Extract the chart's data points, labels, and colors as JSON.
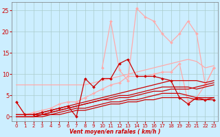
{
  "background_color": "#cceeff",
  "grid_color": "#aacccc",
  "xlabel": "Vent moyen/en rafales ( km/h )",
  "tick_color": "#cc0000",
  "yticks": [
    0,
    5,
    10,
    15,
    20,
    25
  ],
  "xticks": [
    0,
    1,
    2,
    3,
    4,
    5,
    6,
    7,
    8,
    9,
    10,
    11,
    12,
    13,
    14,
    15,
    16,
    17,
    18,
    19,
    20,
    21,
    22,
    23
  ],
  "xlim": [
    -0.5,
    23.5
  ],
  "ylim": [
    -1,
    27
  ],
  "series": [
    {
      "x": [
        0,
        1,
        2,
        3,
        4,
        5,
        6,
        7,
        8,
        9,
        10,
        11,
        12,
        13,
        14,
        15,
        16,
        17,
        18,
        19,
        20,
        21,
        22,
        23
      ],
      "y": [
        7.5,
        7.5,
        7.5,
        7.5,
        7.5,
        7.5,
        7.5,
        7.5,
        7.5,
        8.0,
        8.5,
        9.0,
        9.5,
        10.0,
        10.5,
        11.0,
        11.5,
        12.0,
        12.5,
        13.0,
        13.5,
        13.0,
        11.5,
        12.0
      ],
      "color": "#ffaaaa",
      "linewidth": 0.9,
      "marker": null,
      "markersize": 0
    },
    {
      "x": [
        10,
        11,
        12,
        13,
        14,
        15,
        16,
        17,
        18,
        19,
        20,
        21,
        22,
        23
      ],
      "y": [
        11.5,
        22.5,
        11.0,
        8.5,
        25.5,
        23.5,
        22.5,
        19.5,
        17.5,
        19.5,
        22.5,
        19.5,
        7.5,
        11.5
      ],
      "color": "#ffaaaa",
      "linewidth": 0.9,
      "marker": "D",
      "markersize": 2
    },
    {
      "x": [
        0,
        1,
        2,
        3,
        4,
        5,
        6,
        7,
        8,
        9,
        10,
        11,
        12,
        13,
        14,
        15,
        16,
        17,
        18,
        19,
        20,
        21,
        22,
        23
      ],
      "y": [
        3.5,
        0.5,
        1.0,
        1.5,
        2.0,
        3.0,
        3.5,
        3.5,
        4.5,
        5.5,
        6.5,
        7.5,
        8.0,
        9.5,
        9.5,
        9.5,
        10.0,
        10.5,
        10.5,
        12.5,
        3.5,
        4.5,
        7.5,
        11.5
      ],
      "color": "#ffaaaa",
      "linewidth": 0.9,
      "marker": "D",
      "markersize": 2
    },
    {
      "x": [
        0,
        1,
        2,
        3,
        4,
        5,
        6,
        7,
        8,
        9,
        10,
        11,
        12,
        13,
        14,
        15,
        16,
        17,
        18,
        19,
        20,
        21,
        22,
        23
      ],
      "y": [
        3.5,
        0.5,
        0.5,
        1.0,
        1.5,
        2.0,
        2.5,
        0.0,
        9.0,
        7.0,
        9.0,
        9.0,
        12.5,
        13.5,
        9.5,
        9.5,
        9.5,
        9.0,
        8.5,
        4.5,
        3.0,
        4.5,
        4.0,
        4.0
      ],
      "color": "#cc0000",
      "linewidth": 0.9,
      "marker": "D",
      "markersize": 2
    },
    {
      "x": [
        0,
        1,
        2,
        3,
        4,
        5,
        6,
        7,
        8,
        9,
        10,
        11,
        12,
        13,
        14,
        15,
        16,
        17,
        18,
        19,
        20,
        21,
        22,
        23
      ],
      "y": [
        0.5,
        0.5,
        0.5,
        1.0,
        1.5,
        2.0,
        2.5,
        3.0,
        3.5,
        4.0,
        4.5,
        5.0,
        5.5,
        6.0,
        6.5,
        7.0,
        7.5,
        8.0,
        8.5,
        8.5,
        8.5,
        8.5,
        8.0,
        8.5
      ],
      "color": "#cc0000",
      "linewidth": 0.9,
      "marker": null,
      "markersize": 0
    },
    {
      "x": [
        0,
        1,
        2,
        3,
        4,
        5,
        6,
        7,
        8,
        9,
        10,
        11,
        12,
        13,
        14,
        15,
        16,
        17,
        18,
        19,
        20,
        21,
        22,
        23
      ],
      "y": [
        0.5,
        0.5,
        0.5,
        0.5,
        1.0,
        1.5,
        2.0,
        2.5,
        3.0,
        3.5,
        4.0,
        4.5,
        5.0,
        5.0,
        5.5,
        6.0,
        6.5,
        7.0,
        7.0,
        7.0,
        7.0,
        6.5,
        7.0,
        7.5
      ],
      "color": "#cc0000",
      "linewidth": 0.9,
      "marker": null,
      "markersize": 0
    },
    {
      "x": [
        0,
        1,
        2,
        3,
        4,
        5,
        6,
        7,
        8,
        9,
        10,
        11,
        12,
        13,
        14,
        15,
        16,
        17,
        18,
        19,
        20,
        21,
        22,
        23
      ],
      "y": [
        0.0,
        0.0,
        0.0,
        0.5,
        0.5,
        1.0,
        1.5,
        2.0,
        2.0,
        2.5,
        3.0,
        3.5,
        3.5,
        4.0,
        4.0,
        4.5,
        5.0,
        5.5,
        5.5,
        5.5,
        5.0,
        4.5,
        4.5,
        4.5
      ],
      "color": "#cc0000",
      "linewidth": 0.9,
      "marker": null,
      "markersize": 0
    },
    {
      "x": [
        0,
        1,
        2,
        3,
        4,
        5,
        6,
        7,
        8,
        9,
        10,
        11,
        12,
        13,
        14,
        15,
        16,
        17,
        18,
        19,
        20,
        21,
        22,
        23
      ],
      "y": [
        0.0,
        0.0,
        0.0,
        0.5,
        1.0,
        1.5,
        2.0,
        2.5,
        3.0,
        3.5,
        4.0,
        4.0,
        4.5,
        4.5,
        5.0,
        5.5,
        6.0,
        6.0,
        6.5,
        6.5,
        6.5,
        7.0,
        7.5,
        8.0
      ],
      "color": "#cc0000",
      "linewidth": 0.9,
      "marker": null,
      "markersize": 0
    },
    {
      "x": [
        0,
        1,
        2,
        3,
        4,
        5,
        6,
        7,
        8,
        9,
        10,
        11,
        12,
        13,
        14,
        15,
        16,
        17,
        18,
        19,
        20,
        21,
        22,
        23
      ],
      "y": [
        0.0,
        0.0,
        0.0,
        0.0,
        0.5,
        0.5,
        1.0,
        1.5,
        1.5,
        2.0,
        2.5,
        3.0,
        3.0,
        3.5,
        3.5,
        4.0,
        4.0,
        4.5,
        4.5,
        4.5,
        4.5,
        4.0,
        4.0,
        4.5
      ],
      "color": "#cc0000",
      "linewidth": 0.9,
      "marker": null,
      "markersize": 0
    }
  ]
}
